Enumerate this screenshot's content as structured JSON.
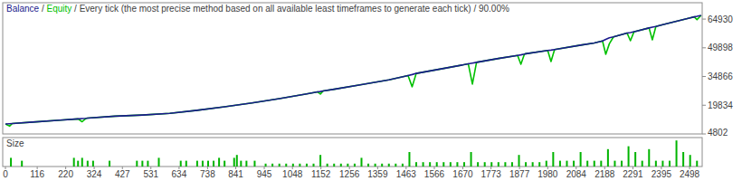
{
  "chart_data": [
    {
      "type": "line",
      "title": "Every tick (the most precise method based on all available least timeframes to generate each tick) / 90.00%",
      "legend": "top-left",
      "tick_labels": "y",
      "xlim": [
        -10,
        2544
      ],
      "ylim": [
        4802,
        73500
      ],
      "yticks": [
        4802,
        19834,
        34866,
        49898,
        64930
      ],
      "x": [
        0,
        15,
        25,
        100,
        200,
        265,
        280,
        295,
        300,
        400,
        500,
        600,
        700,
        800,
        900,
        1000,
        1100,
        1140,
        1150,
        1160,
        1200,
        1300,
        1400,
        1470,
        1485,
        1500,
        1600,
        1690,
        1705,
        1720,
        1800,
        1870,
        1882,
        1895,
        1900,
        1980,
        1992,
        2005,
        2100,
        2150,
        2180,
        2192,
        2205,
        2220,
        2270,
        2282,
        2295,
        2300,
        2350,
        2362,
        2375,
        2400,
        2500,
        2515,
        2525,
        2540
      ],
      "series": [
        {
          "name": "Equity",
          "color": "#00c000",
          "values": [
            10000,
            8900,
            10250,
            11000,
            12000,
            12700,
            11200,
            13000,
            13100,
            14100,
            14700,
            15600,
            17200,
            19000,
            21000,
            23300,
            25800,
            26800,
            25700,
            27300,
            28200,
            30600,
            33100,
            35400,
            29500,
            36500,
            39100,
            41500,
            30900,
            42300,
            44300,
            45900,
            41300,
            46600,
            46800,
            48500,
            42700,
            49000,
            51300,
            52400,
            53500,
            46500,
            52000,
            55600,
            57600,
            53600,
            58300,
            58500,
            60300,
            54100,
            61100,
            62000,
            65600,
            66100,
            64600,
            66900
          ]
        },
        {
          "name": "Balance",
          "color": "#1a1a8c",
          "values": [
            10000,
            10150,
            10250,
            11000,
            12000,
            12700,
            12850,
            13000,
            13100,
            14100,
            14700,
            15600,
            17200,
            19000,
            21000,
            23300,
            25800,
            26800,
            27000,
            27300,
            28200,
            30600,
            33100,
            35400,
            35900,
            36500,
            39100,
            41500,
            41900,
            42300,
            44300,
            45900,
            46200,
            46600,
            46800,
            48500,
            48700,
            49000,
            51300,
            52400,
            53500,
            54300,
            55100,
            55600,
            57600,
            57900,
            58300,
            58500,
            60300,
            60700,
            61100,
            62000,
            65600,
            66100,
            66400,
            66900
          ]
        }
      ]
    },
    {
      "type": "bar",
      "title": "Size",
      "color": "#00b400",
      "tick_labels": "x",
      "xlim": [
        -10,
        2544
      ],
      "ylim": [
        0,
        10
      ],
      "xticks": [
        0,
        116,
        220,
        324,
        427,
        531,
        634,
        738,
        841,
        945,
        1048,
        1152,
        1256,
        1359,
        1463,
        1566,
        1670,
        1773,
        1877,
        1980,
        2084,
        2188,
        2291,
        2395,
        2498
      ],
      "x": [
        20,
        60,
        250,
        265,
        280,
        300,
        320,
        380,
        480,
        500,
        520,
        560,
        640,
        660,
        700,
        720,
        740,
        760,
        780,
        800,
        835,
        845,
        860,
        880,
        910,
        950,
        975,
        1000,
        1025,
        1050,
        1075,
        1100,
        1125,
        1150,
        1175,
        1200,
        1225,
        1250,
        1275,
        1300,
        1325,
        1350,
        1375,
        1400,
        1425,
        1450,
        1475,
        1500,
        1525,
        1550,
        1575,
        1600,
        1625,
        1650,
        1675,
        1700,
        1725,
        1750,
        1775,
        1800,
        1825,
        1850,
        1875,
        1900,
        1925,
        1950,
        1975,
        2000,
        2025,
        2050,
        2075,
        2100,
        2125,
        2150,
        2175,
        2200,
        2225,
        2250,
        2275,
        2300,
        2325,
        2350,
        2375,
        2400,
        2425,
        2450,
        2475,
        2500,
        2525
      ],
      "values": [
        3,
        2,
        3,
        2,
        3,
        2,
        2,
        2,
        2,
        2,
        2,
        3,
        2,
        2,
        2,
        2,
        2,
        2,
        3,
        2,
        3,
        4,
        2,
        2,
        2,
        1,
        1,
        1,
        1,
        1,
        1,
        1,
        1,
        4,
        1,
        1,
        1,
        1,
        1,
        3,
        1,
        1,
        1,
        1,
        1,
        1,
        5,
        1.5,
        1.5,
        1.5,
        1.5,
        1.5,
        1.5,
        1.5,
        1.5,
        5,
        1.5,
        1.5,
        1.5,
        1.5,
        1.5,
        1.5,
        4,
        1.5,
        1.5,
        1.5,
        2,
        5,
        2,
        2,
        2,
        5,
        2,
        2,
        2,
        6,
        2,
        2,
        7,
        5,
        2,
        6,
        2,
        2,
        2,
        9,
        5,
        4,
        2
      ]
    }
  ]
}
